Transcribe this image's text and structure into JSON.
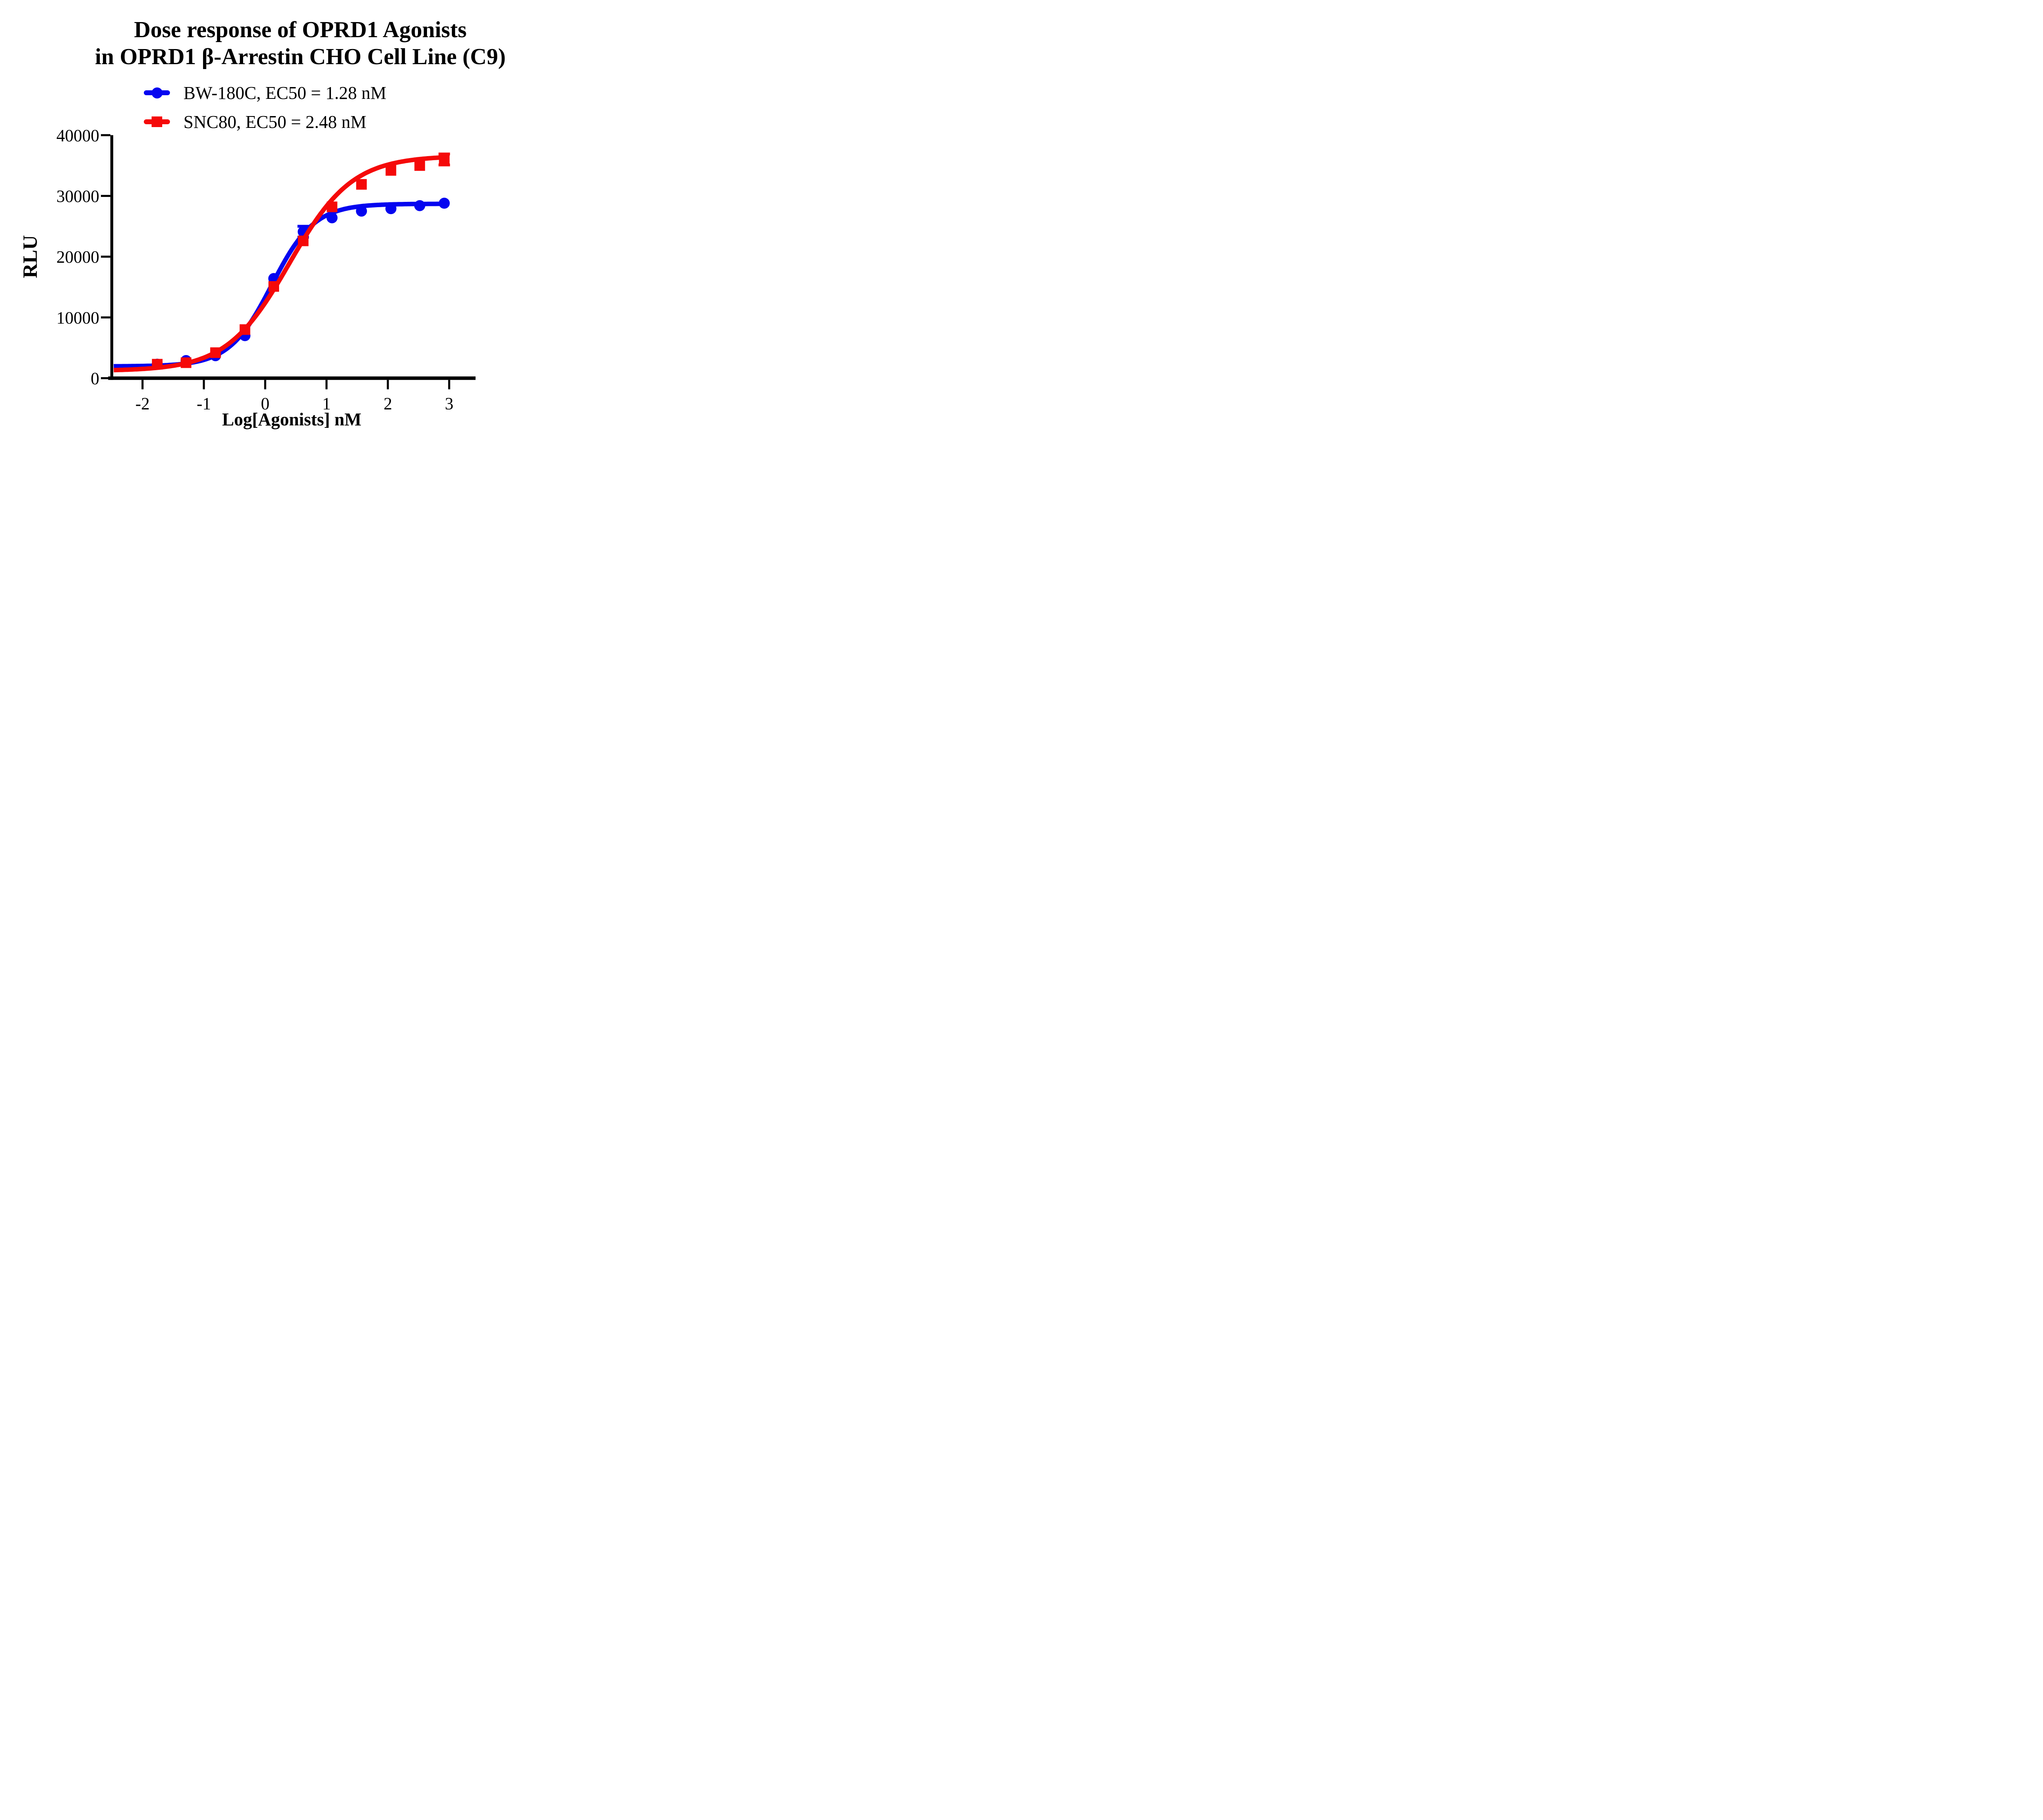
{
  "title": {
    "line1": "Dose response of OPRD1 Agonists",
    "line2": "in OPRD1 β-Arrestin CHO Cell Line (C9)"
  },
  "legend": [
    {
      "label": "BW-180C, EC50 = 1.28 nM",
      "color": "#0505F0",
      "marker": "circle"
    },
    {
      "label": "SNC80, EC50 = 2.48 nM",
      "color": "#F50909",
      "marker": "square"
    }
  ],
  "chart_data": {
    "type": "scatter",
    "title": "Dose response of OPRD1 Agonists in OPRD1 β-Arrestin CHO Cell Line (C9)",
    "xlabel": "Log[Agonists] nM",
    "ylabel": "RLU",
    "xlim": [
      -2.56,
      3.43
    ],
    "ylim": [
      0,
      40000
    ],
    "x_ticks": [
      -2,
      -1,
      0,
      1,
      2,
      3
    ],
    "y_ticks": [
      0,
      10000,
      20000,
      30000,
      40000
    ],
    "grid": false,
    "legend_position": "top-left",
    "series": [
      {
        "name": "BW-180C",
        "ec50_nM": 1.28,
        "color": "#0505F0",
        "marker": "circle",
        "x": [
          -1.76,
          -1.29,
          -0.81,
          -0.33,
          0.14,
          0.62,
          1.09,
          1.57,
          2.05,
          2.52,
          2.92
        ],
        "y": [
          2300,
          2900,
          3700,
          7000,
          16400,
          24100,
          26400,
          27500,
          27900,
          28400,
          28800
        ],
        "yerr": [
          0,
          0,
          0,
          0,
          0,
          900,
          0,
          0,
          0,
          0,
          0
        ],
        "fit": {
          "model": "4PL",
          "bottom": 1950,
          "top": 28700,
          "logEC50": 0.107,
          "hill": 1.25,
          "xstart": -2.47,
          "xend": 2.92
        }
      },
      {
        "name": "SNC80",
        "ec50_nM": 2.48,
        "color": "#F50909",
        "marker": "square",
        "x": [
          -1.76,
          -1.29,
          -0.81,
          -0.33,
          0.14,
          0.62,
          1.09,
          1.57,
          2.05,
          2.52,
          2.92
        ],
        "y": [
          2300,
          2550,
          4200,
          8000,
          15100,
          22600,
          28200,
          31900,
          34200,
          35000,
          36000
        ],
        "yerr": [
          0,
          0,
          0,
          0,
          0,
          0,
          0,
          0,
          0,
          0,
          900
        ],
        "fit": {
          "model": "4PL",
          "bottom": 1200,
          "top": 36600,
          "logEC50": 0.394,
          "hill": 0.85,
          "xstart": -2.47,
          "xend": 2.92
        }
      }
    ]
  }
}
